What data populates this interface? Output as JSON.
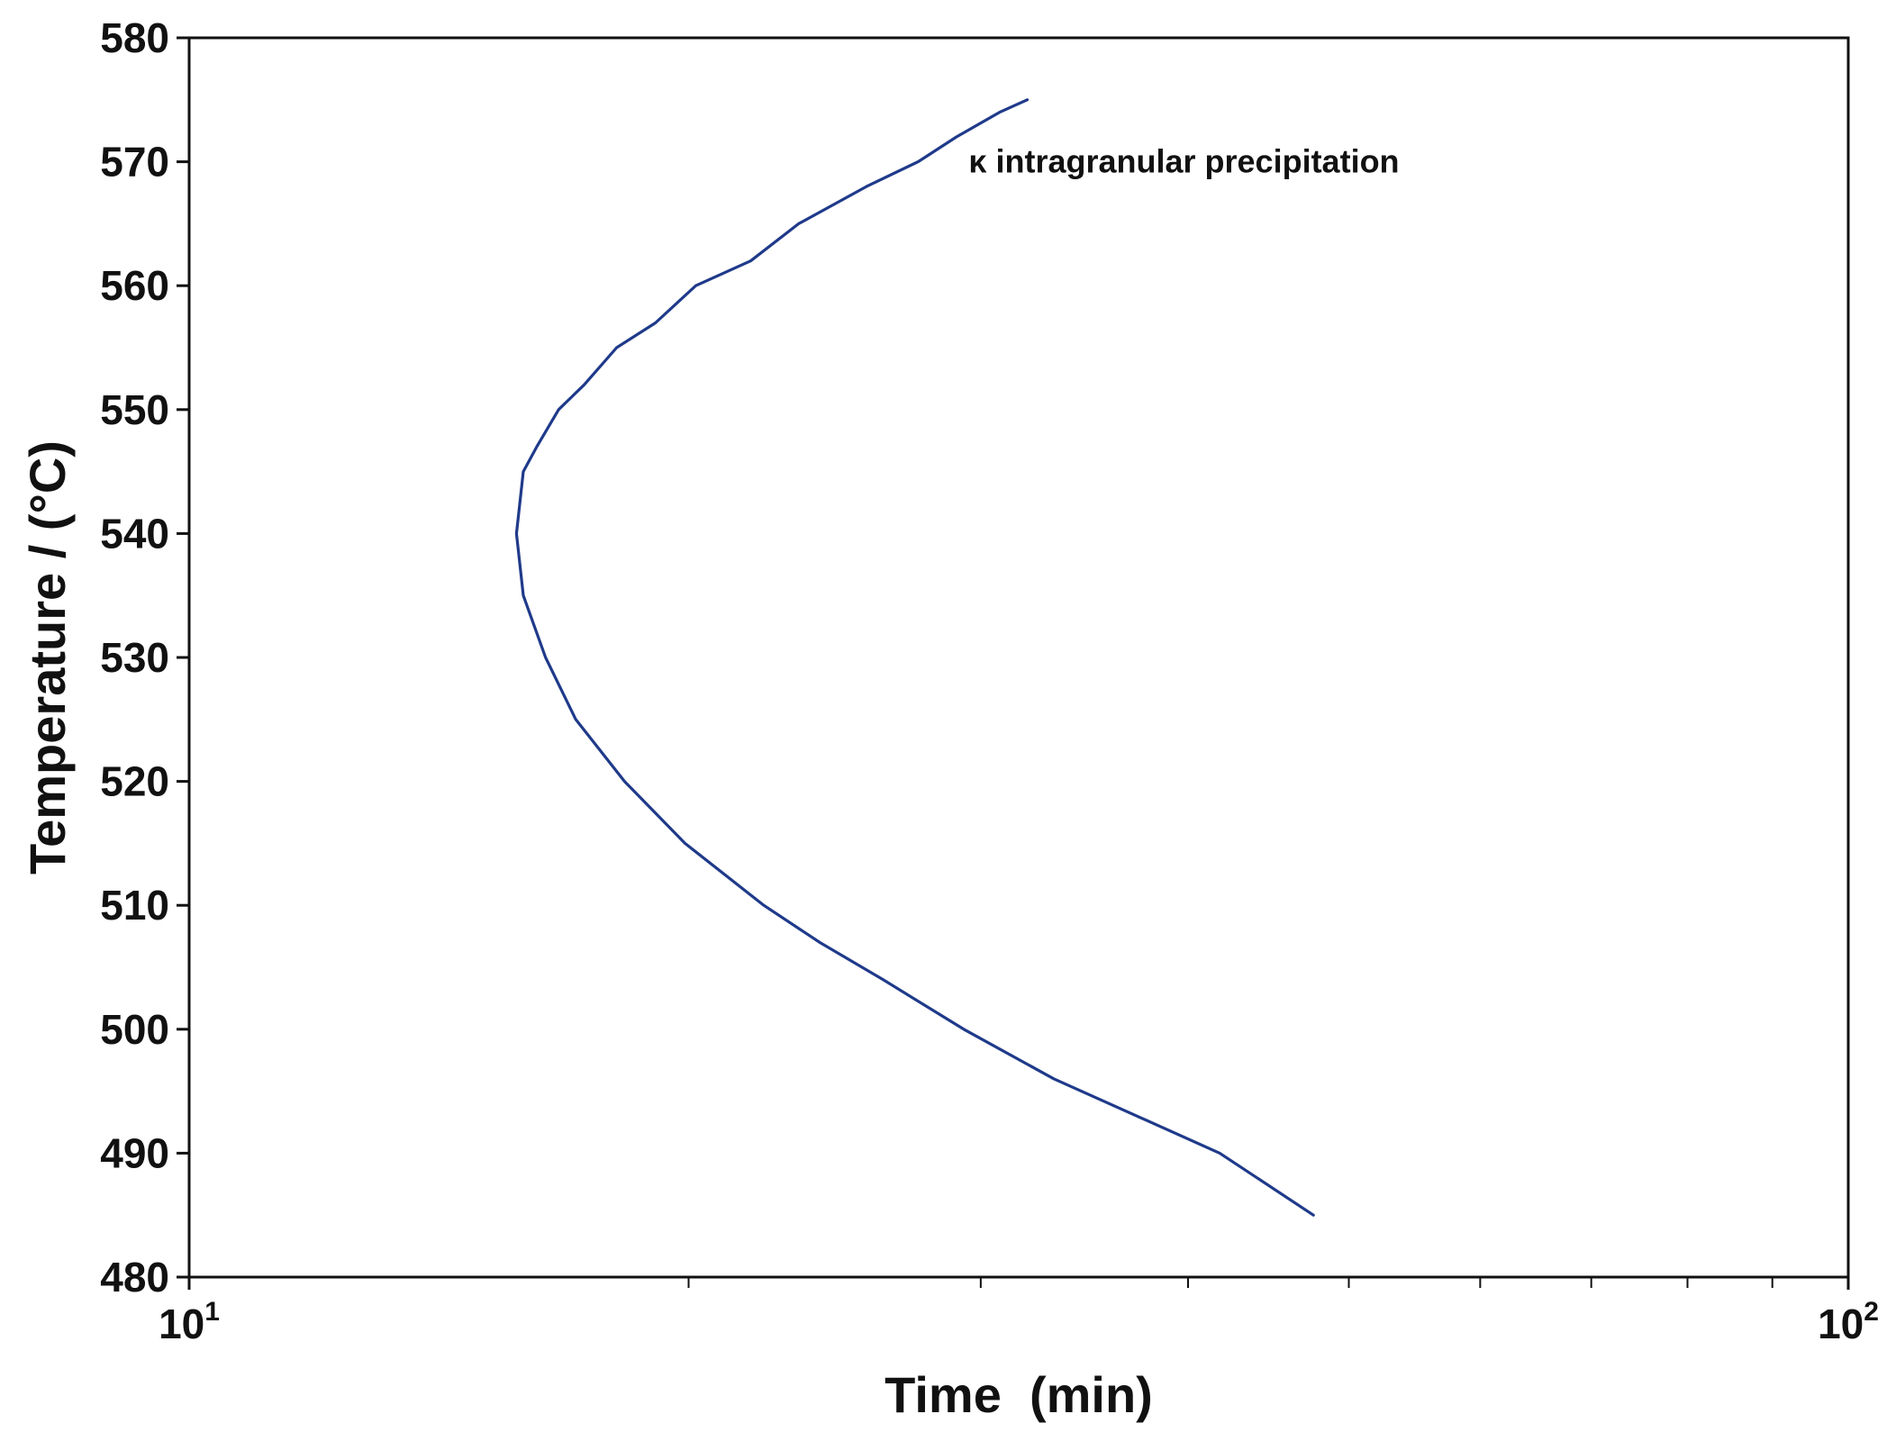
{
  "chart_data": {
    "type": "line",
    "xlabel": "Time  (min)",
    "ylabel": "Temperature / (°C)",
    "x_scale": "log",
    "xlim": [
      10,
      100
    ],
    "ylim": [
      480,
      580
    ],
    "x_ticks": [
      {
        "base": "10",
        "exp": "1"
      },
      {
        "base": "10",
        "exp": "2"
      }
    ],
    "y_ticks": [
      "580",
      "570",
      "560",
      "550",
      "540",
      "530",
      "520",
      "510",
      "500",
      "490",
      "480"
    ],
    "x_minor_ticks": [
      20,
      30,
      40,
      50,
      60,
      70,
      80,
      90
    ],
    "grid": false,
    "annotation": {
      "text": "κ intragranular precipitation",
      "x": 29.5,
      "y": 570
    },
    "series": [
      {
        "color": "#1f3a8a",
        "x": [
          32.0,
          30.8,
          29.0,
          27.5,
          25.6,
          23.3,
          21.8,
          20.2,
          19.1,
          18.1,
          17.3,
          16.7,
          16.2,
          15.9,
          15.75,
          15.9,
          16.4,
          17.1,
          18.3,
          19.9,
          22.2,
          24.0,
          26.2,
          29.3,
          33.2,
          41.8,
          47.6
        ],
        "y": [
          575,
          574,
          572,
          570,
          568,
          565,
          562,
          560,
          557,
          555,
          552,
          550,
          547,
          545,
          540,
          535,
          530,
          525,
          520,
          515,
          510,
          507,
          504,
          500,
          496,
          490,
          485
        ]
      }
    ]
  }
}
